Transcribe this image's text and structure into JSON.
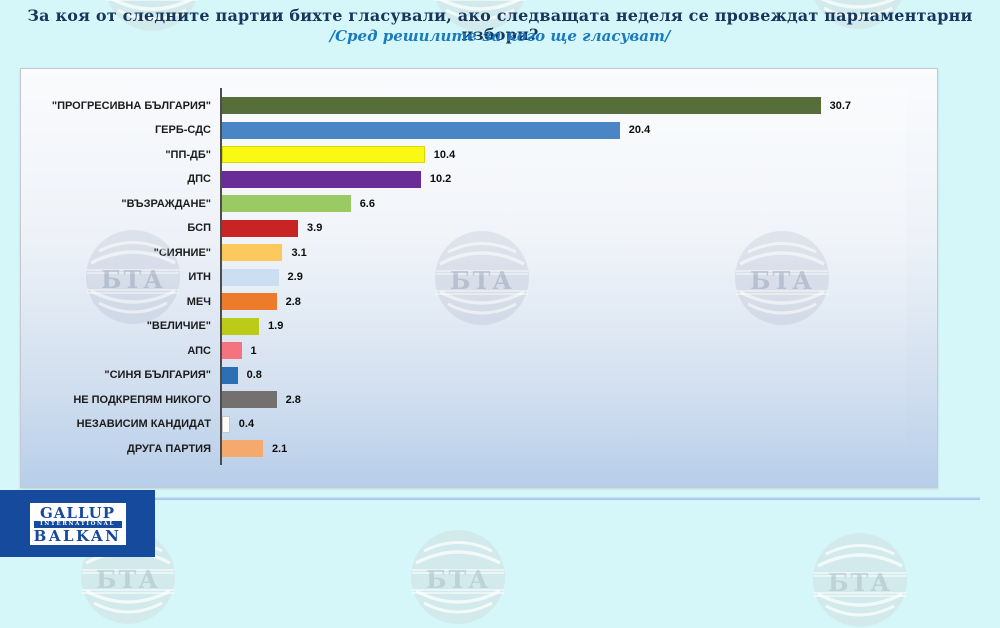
{
  "title": "За коя от следните партии бихте  гласували,  ако следващата неделя се провеждат парламентарни избори?",
  "subtitle": "/Сред решилите за кого ще гласуват/",
  "chart_data": {
    "type": "bar",
    "orientation": "horizontal",
    "title": "За коя от следните партии бихте гласували, ако следващата неделя се провеждат парламентарни избори? /Сред решилите за кого ще гласуват/",
    "categories": [
      "\"ПРОГРЕСИВНА БЪЛГАРИЯ\"",
      "ГЕРБ-СДС",
      "\"ПП-ДБ\"",
      "ДПС",
      "\"ВЪЗРАЖДАНЕ\"",
      "БСП",
      "\"СИЯНИЕ\"",
      "ИТН",
      "МЕЧ",
      "\"ВЕЛИЧИЕ\"",
      "АПС",
      "\"СИНЯ БЪЛГАРИЯ\"",
      "НЕ ПОДКРЕПЯМ НИКОГО",
      "НЕЗАВИСИМ КАНДИДАТ",
      "ДРУГА ПАРТИЯ"
    ],
    "values": [
      30.7,
      20.4,
      10.4,
      10.2,
      6.6,
      3.9,
      3.1,
      2.9,
      2.8,
      1.9,
      1,
      0.8,
      2.8,
      0.4,
      2.1
    ],
    "bar_colors": [
      "#566e39",
      "#4a86c6",
      "#f9f913",
      "#6a2d98",
      "#9aca63",
      "#c82424",
      "#fbc95c",
      "#ccdef2",
      "#ec7c2c",
      "#bcca18",
      "#f4737f",
      "#2d6fb5",
      "#747070",
      "#fdfcf8",
      "#f6a96c"
    ],
    "bar_borders": [
      null,
      null,
      "#d9d900",
      null,
      null,
      null,
      null,
      null,
      null,
      null,
      null,
      null,
      null,
      "#c9c9c9",
      null
    ],
    "xlim": [
      0,
      36
    ],
    "grid": false,
    "data_labels": true,
    "legend": "none",
    "ylabel": "",
    "xlabel": ""
  },
  "watermark": {
    "text": "БТА"
  },
  "logo": {
    "line1": "GALLUP",
    "line2": "INTERNATIONAL",
    "line3": "BALKAN"
  },
  "colors": {
    "page_bg": "#d6f7f9",
    "title": "#17365d",
    "subtitle": "#1a7abf",
    "axis": "#4d4d4d",
    "chart_bg_top": "#fafbfd",
    "chart_bg_bottom": "#b7cee9",
    "footer_line": "#9dc0ea",
    "logo_blue": "#164a9c"
  }
}
